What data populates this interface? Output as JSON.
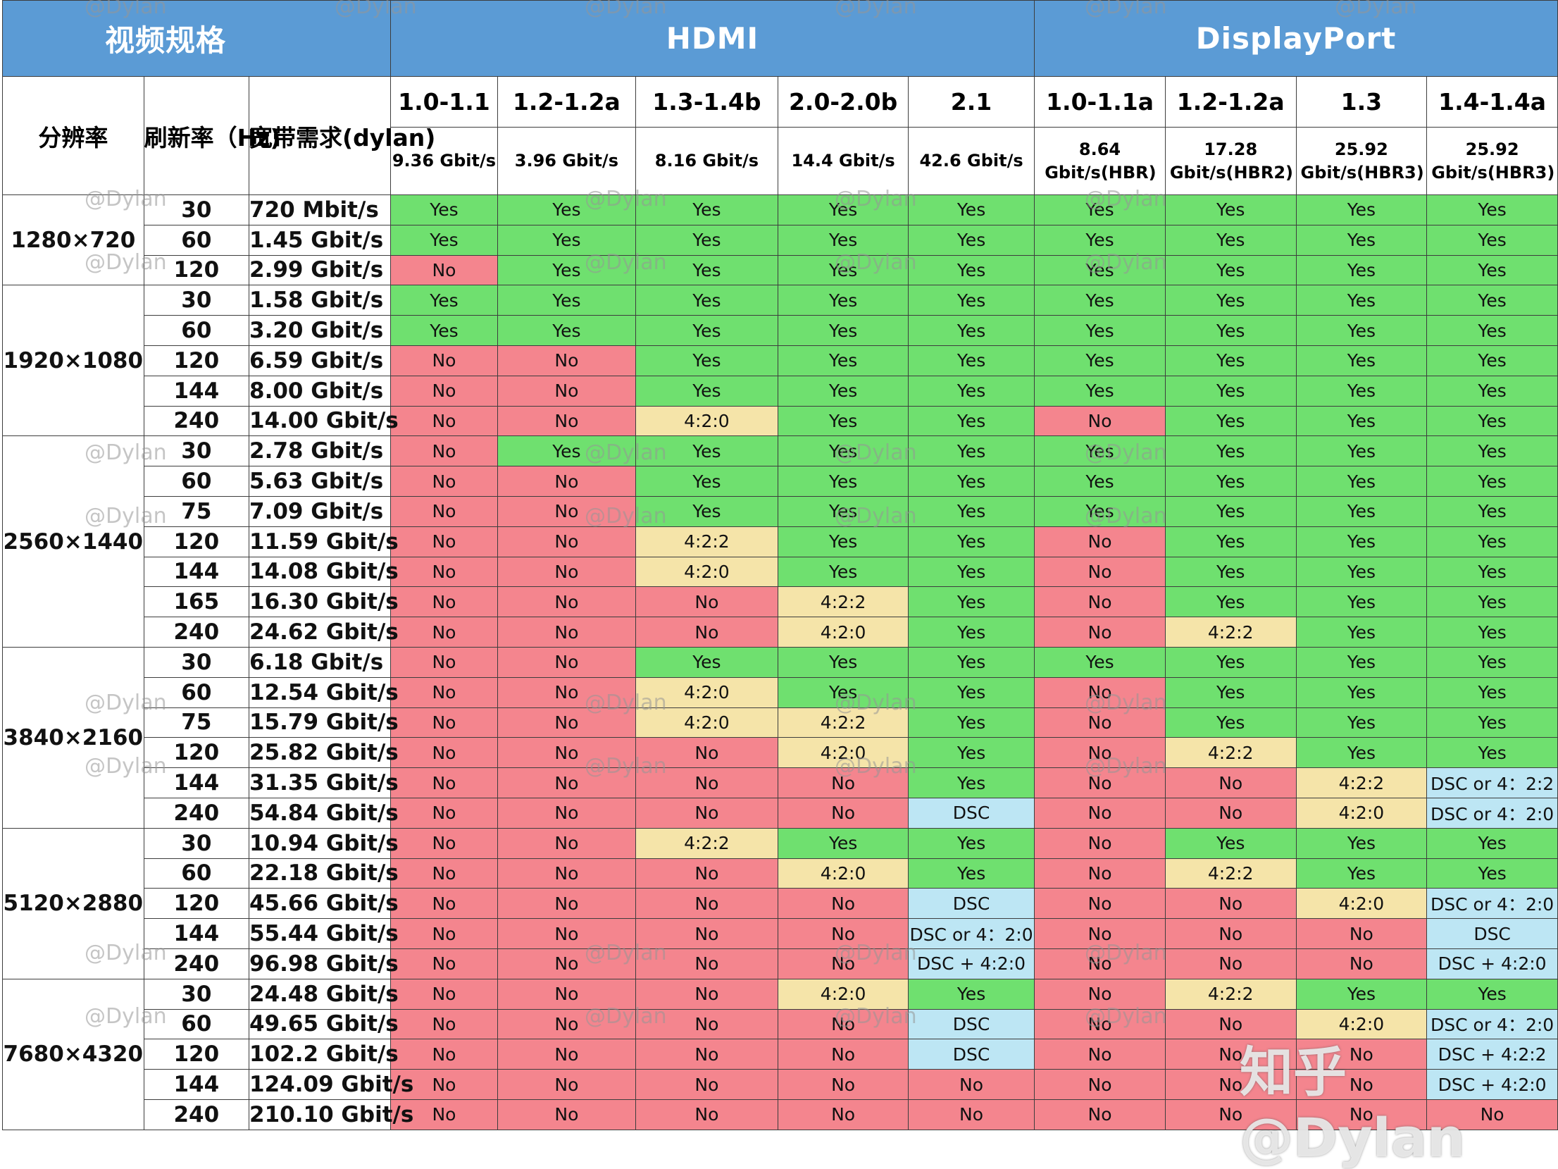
{
  "colors": {
    "header_blue": "#5b9bd5",
    "yes_green": "#6fe06f",
    "no_red": "#f4858e",
    "subsample_yellow": "#f5e4a9",
    "dsc_blue": "#bde6f4"
  },
  "header": {
    "spec_title": "视频规格",
    "hdmi": "HDMI",
    "displayport": "DisplayPort"
  },
  "left_headers": {
    "resolution": "分辨率",
    "refresh": "刷新率（Hz)",
    "bandwidth": "宽带需求(dylan)"
  },
  "versions": [
    {
      "name": "1.0-1.1",
      "rate": "9.36 Gbit/s"
    },
    {
      "name": "1.2-1.2a",
      "rate": "3.96 Gbit/s"
    },
    {
      "name": "1.3-1.4b",
      "rate": "8.16 Gbit/s"
    },
    {
      "name": "2.0-2.0b",
      "rate": "14.4 Gbit/s"
    },
    {
      "name": "2.1",
      "rate": "42.6 Gbit/s"
    },
    {
      "name": "1.0-1.1a",
      "rate": "8.64 Gbit/s(HBR)"
    },
    {
      "name": "1.2-1.2a",
      "rate": "17.28 Gbit/s(HBR2)"
    },
    {
      "name": "1.3",
      "rate": "25.92 Gbit/s(HBR3)"
    },
    {
      "name": "1.4-1.4a",
      "rate": "25.92 Gbit/s(HBR3)"
    }
  ],
  "groups": [
    {
      "resolution": "1280×720",
      "rows": [
        {
          "hz": "30",
          "bw": "720 Mbit/s",
          "cells": [
            "Yes",
            "Yes",
            "Yes",
            "Yes",
            "Yes",
            "Yes",
            "Yes",
            "Yes",
            "Yes"
          ]
        },
        {
          "hz": "60",
          "bw": "1.45 Gbit/s",
          "cells": [
            "Yes",
            "Yes",
            "Yes",
            "Yes",
            "Yes",
            "Yes",
            "Yes",
            "Yes",
            "Yes"
          ]
        },
        {
          "hz": "120",
          "bw": "2.99 Gbit/s",
          "cells": [
            "No",
            "Yes",
            "Yes",
            "Yes",
            "Yes",
            "Yes",
            "Yes",
            "Yes",
            "Yes"
          ]
        }
      ]
    },
    {
      "resolution": "1920×1080",
      "rows": [
        {
          "hz": "30",
          "bw": "1.58 Gbit/s",
          "cells": [
            "Yes",
            "Yes",
            "Yes",
            "Yes",
            "Yes",
            "Yes",
            "Yes",
            "Yes",
            "Yes"
          ]
        },
        {
          "hz": "60",
          "bw": "3.20 Gbit/s",
          "cells": [
            "Yes",
            "Yes",
            "Yes",
            "Yes",
            "Yes",
            "Yes",
            "Yes",
            "Yes",
            "Yes"
          ]
        },
        {
          "hz": "120",
          "bw": "6.59 Gbit/s",
          "cells": [
            "No",
            "No",
            "Yes",
            "Yes",
            "Yes",
            "Yes",
            "Yes",
            "Yes",
            "Yes"
          ]
        },
        {
          "hz": "144",
          "bw": "8.00 Gbit/s",
          "cells": [
            "No",
            "No",
            "Yes",
            "Yes",
            "Yes",
            "Yes",
            "Yes",
            "Yes",
            "Yes"
          ]
        },
        {
          "hz": "240",
          "bw": "14.00 Gbit/s",
          "cells": [
            "No",
            "No",
            "4:2:0",
            "Yes",
            "Yes",
            "No",
            "Yes",
            "Yes",
            "Yes"
          ]
        }
      ]
    },
    {
      "resolution": "2560×1440",
      "rows": [
        {
          "hz": "30",
          "bw": "2.78 Gbit/s",
          "cells": [
            "No",
            "Yes",
            "Yes",
            "Yes",
            "Yes",
            "Yes",
            "Yes",
            "Yes",
            "Yes"
          ]
        },
        {
          "hz": "60",
          "bw": "5.63 Gbit/s",
          "cells": [
            "No",
            "No",
            "Yes",
            "Yes",
            "Yes",
            "Yes",
            "Yes",
            "Yes",
            "Yes"
          ]
        },
        {
          "hz": "75",
          "bw": "7.09 Gbit/s",
          "cells": [
            "No",
            "No",
            "Yes",
            "Yes",
            "Yes",
            "Yes",
            "Yes",
            "Yes",
            "Yes"
          ]
        },
        {
          "hz": "120",
          "bw": "11.59 Gbit/s",
          "cells": [
            "No",
            "No",
            "4:2:2",
            "Yes",
            "Yes",
            "No",
            "Yes",
            "Yes",
            "Yes"
          ]
        },
        {
          "hz": "144",
          "bw": "14.08 Gbit/s",
          "cells": [
            "No",
            "No",
            "4:2:0",
            "Yes",
            "Yes",
            "No",
            "Yes",
            "Yes",
            "Yes"
          ]
        },
        {
          "hz": "165",
          "bw": "16.30 Gbit/s",
          "cells": [
            "No",
            "No",
            "No",
            "4:2:2",
            "Yes",
            "No",
            "Yes",
            "Yes",
            "Yes"
          ]
        },
        {
          "hz": "240",
          "bw": "24.62 Gbit/s",
          "cells": [
            "No",
            "No",
            "No",
            "4:2:0",
            "Yes",
            "No",
            "4:2:2",
            "Yes",
            "Yes"
          ]
        }
      ]
    },
    {
      "resolution": "3840×2160",
      "rows": [
        {
          "hz": "30",
          "bw": "6.18 Gbit/s",
          "cells": [
            "No",
            "No",
            "Yes",
            "Yes",
            "Yes",
            "Yes",
            "Yes",
            "Yes",
            "Yes"
          ]
        },
        {
          "hz": "60",
          "bw": "12.54 Gbit/s",
          "cells": [
            "No",
            "No",
            "4:2:0",
            "Yes",
            "Yes",
            "No",
            "Yes",
            "Yes",
            "Yes"
          ]
        },
        {
          "hz": "75",
          "bw": "15.79 Gbit/s",
          "cells": [
            "No",
            "No",
            "4:2:0",
            "4:2:2",
            "Yes",
            "No",
            "Yes",
            "Yes",
            "Yes"
          ]
        },
        {
          "hz": "120",
          "bw": "25.82 Gbit/s",
          "cells": [
            "No",
            "No",
            "No",
            "4:2:0",
            "Yes",
            "No",
            "4:2:2",
            "Yes",
            "Yes"
          ]
        },
        {
          "hz": "144",
          "bw": "31.35 Gbit/s",
          "cells": [
            "No",
            "No",
            "No",
            "No",
            "Yes",
            "No",
            "No",
            "4:2:2",
            "DSC or 4：2:2"
          ]
        },
        {
          "hz": "240",
          "bw": "54.84 Gbit/s",
          "cells": [
            "No",
            "No",
            "No",
            "No",
            "DSC",
            "No",
            "No",
            "4:2:0",
            "DSC or 4：2:0"
          ]
        }
      ]
    },
    {
      "resolution": "5120×2880",
      "rows": [
        {
          "hz": "30",
          "bw": "10.94 Gbit/s",
          "cells": [
            "No",
            "No",
            "4:2:2",
            "Yes",
            "Yes",
            "No",
            "Yes",
            "Yes",
            "Yes"
          ]
        },
        {
          "hz": "60",
          "bw": "22.18 Gbit/s",
          "cells": [
            "No",
            "No",
            "No",
            "4:2:0",
            "Yes",
            "No",
            "4:2:2",
            "Yes",
            "Yes"
          ]
        },
        {
          "hz": "120",
          "bw": "45.66 Gbit/s",
          "cells": [
            "No",
            "No",
            "No",
            "No",
            "DSC",
            "No",
            "No",
            "4:2:0",
            "DSC or 4：2:0"
          ]
        },
        {
          "hz": "144",
          "bw": "55.44 Gbit/s",
          "cells": [
            "No",
            "No",
            "No",
            "No",
            "DSC or 4：2:0",
            "No",
            "No",
            "No",
            "DSC"
          ]
        },
        {
          "hz": "240",
          "bw": "96.98 Gbit/s",
          "cells": [
            "No",
            "No",
            "No",
            "No",
            "DSC + 4:2:0",
            "No",
            "No",
            "No",
            "DSC + 4:2:0"
          ]
        }
      ]
    },
    {
      "resolution": "7680×4320",
      "rows": [
        {
          "hz": "30",
          "bw": "24.48 Gbit/s",
          "cells": [
            "No",
            "No",
            "No",
            "4:2:0",
            "Yes",
            "No",
            "4:2:2",
            "Yes",
            "Yes"
          ]
        },
        {
          "hz": "60",
          "bw": "49.65 Gbit/s",
          "cells": [
            "No",
            "No",
            "No",
            "No",
            "DSC",
            "No",
            "No",
            "4:2:0",
            "DSC or 4：2:0"
          ]
        },
        {
          "hz": "120",
          "bw": "102.2 Gbit/s",
          "cells": [
            "No",
            "No",
            "No",
            "No",
            "DSC",
            "No",
            "No",
            "No",
            "DSC + 4:2:2"
          ]
        },
        {
          "hz": "144",
          "bw": "124.09 Gbit/s",
          "cells": [
            "No",
            "No",
            "No",
            "No",
            "No",
            "No",
            "No",
            "No",
            "DSC + 4:2:0"
          ]
        },
        {
          "hz": "240",
          "bw": "210.10 Gbit/s",
          "cells": [
            "No",
            "No",
            "No",
            "No",
            "No",
            "No",
            "No",
            "No",
            "No"
          ]
        }
      ]
    }
  ],
  "watermark": "@Dylan",
  "brand": "知乎 @Dylan"
}
